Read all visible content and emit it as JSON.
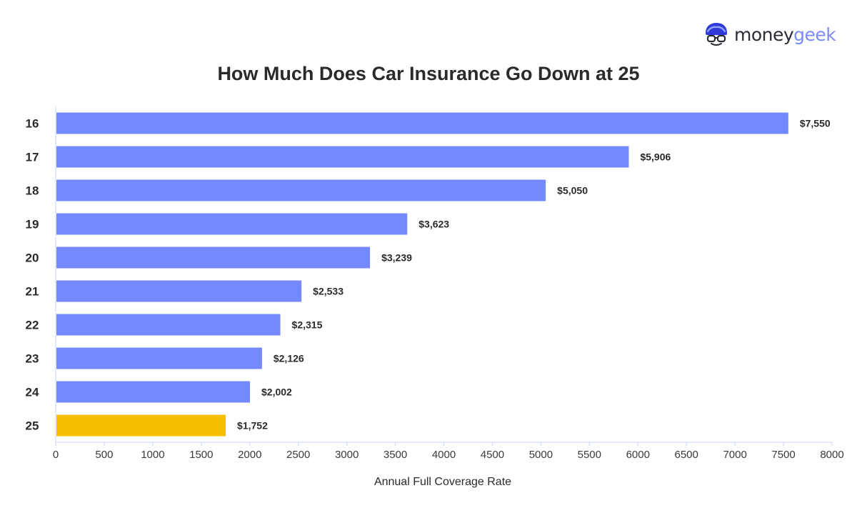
{
  "logo": {
    "icon": "moneygeek-mascot-icon",
    "word_part_a": "money",
    "word_part_b": "geek",
    "color_dark": "#2b2b36",
    "color_accent": "#7b8bff"
  },
  "chart_data": {
    "type": "bar",
    "orientation": "horizontal",
    "title": "How Much Does Car Insurance Go Down at 25",
    "xlabel": "Annual Full Coverage Rate",
    "ylabel": "",
    "categories": [
      "16",
      "17",
      "18",
      "19",
      "20",
      "21",
      "22",
      "23",
      "24",
      "25"
    ],
    "values": [
      7550,
      5906,
      5050,
      3623,
      3239,
      2533,
      2315,
      2126,
      2002,
      1752
    ],
    "value_labels": [
      "$7,550",
      "$5,906",
      "$5,050",
      "$3,623",
      "$3,239",
      "$2,533",
      "$2,315",
      "$2,126",
      "$2,002",
      "$1,752"
    ],
    "xlim": [
      0,
      8000
    ],
    "x_ticks": [
      0,
      500,
      1000,
      1500,
      2000,
      2500,
      3000,
      3500,
      4000,
      4500,
      5000,
      5500,
      6000,
      6500,
      7000,
      7500,
      8000
    ],
    "bar_color": "#7589ff",
    "highlight_color": "#f5c000",
    "highlight_category": "25",
    "grid": false,
    "legend": "none"
  }
}
